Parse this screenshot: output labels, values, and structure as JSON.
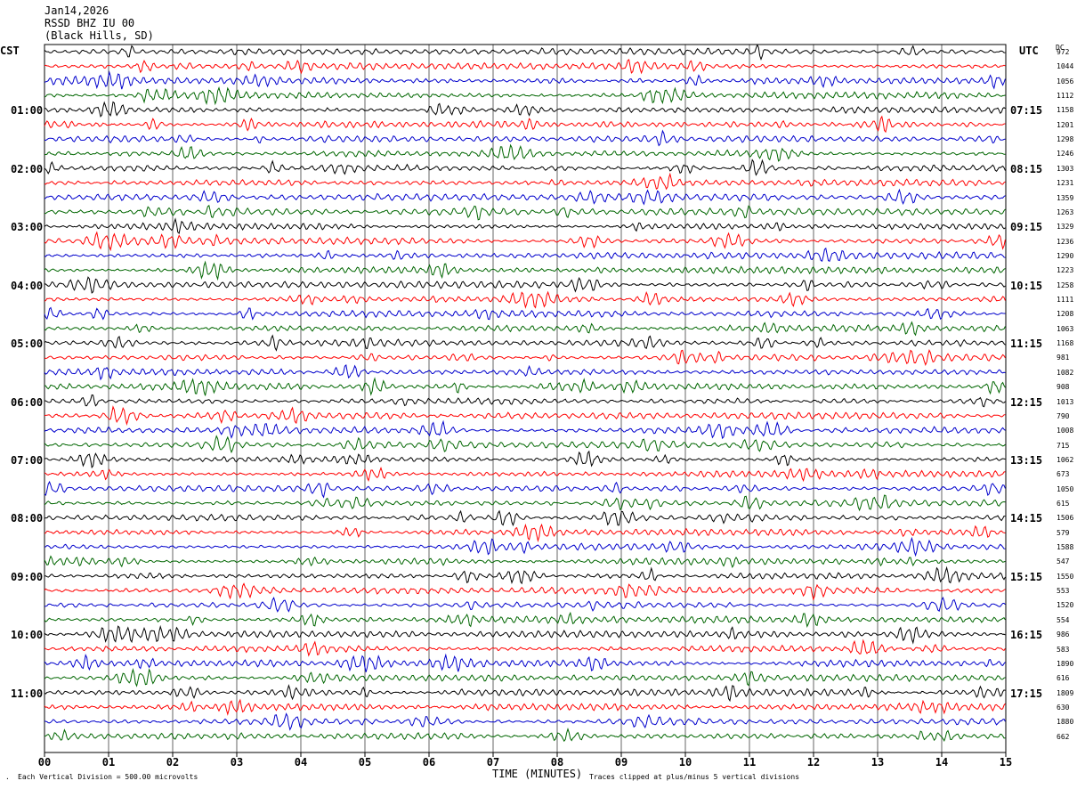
{
  "header": {
    "date": "Jan14,2026",
    "station": "RSSD BHZ IU 00",
    "location": "(Black Hills, SD)"
  },
  "cst_label": "CST",
  "utc_label": "UTC",
  "dc_label": "DC",
  "cst_times": [
    "01:00",
    "02:00",
    "03:00",
    "04:00",
    "05:00",
    "06:00",
    "07:00",
    "08:00",
    "09:00",
    "10:00",
    "11:00"
  ],
  "utc_times": [
    "07:15",
    "08:15",
    "09:15",
    "10:15",
    "11:15",
    "12:15",
    "13:15",
    "14:15",
    "15:15",
    "16:15",
    "17:15"
  ],
  "dc_values": [
    "972",
    "1044",
    "1056",
    "1112",
    "1158",
    "1201",
    "1298",
    "1246",
    "1303",
    "1231",
    "1359",
    "1263",
    "1329",
    "1236",
    "1290",
    "1223",
    "1258",
    "1111",
    "1208",
    "1063",
    "1168",
    "981",
    "1082",
    "908",
    "1013",
    "790",
    "1008",
    "715",
    "1062",
    "673",
    "1050",
    "615",
    "1506",
    "579",
    "1588",
    "547",
    "1550",
    "553",
    "1520",
    "554",
    "986",
    "583",
    "1890",
    "616",
    "1809",
    "630",
    "1880",
    "662"
  ],
  "footer": {
    "division": "Each Vertical Division =  500.00 microvolts",
    "xlabel": "TIME (MINUTES)",
    "clip_note": "Traces clipped at plus/minus 5 vertical divisions"
  },
  "chart_data": {
    "type": "line",
    "xlabel": "TIME (MINUTES)",
    "xlim": [
      0,
      15
    ],
    "x_ticks": [
      "00",
      "01",
      "02",
      "03",
      "04",
      "05",
      "06",
      "07",
      "08",
      "09",
      "10",
      "11",
      "12",
      "13",
      "14",
      "15"
    ],
    "trace_count": 48,
    "traces_per_hour": 4,
    "minutes_per_trace": 15,
    "trace_colors": [
      "#000000",
      "#ff0000",
      "#0000cc",
      "#006600"
    ],
    "grid": true,
    "amplitude_note": "continuous seismic background noise with intermittent higher-amplitude bursts; traces clipped at plus/minus 5 vertical divisions"
  }
}
